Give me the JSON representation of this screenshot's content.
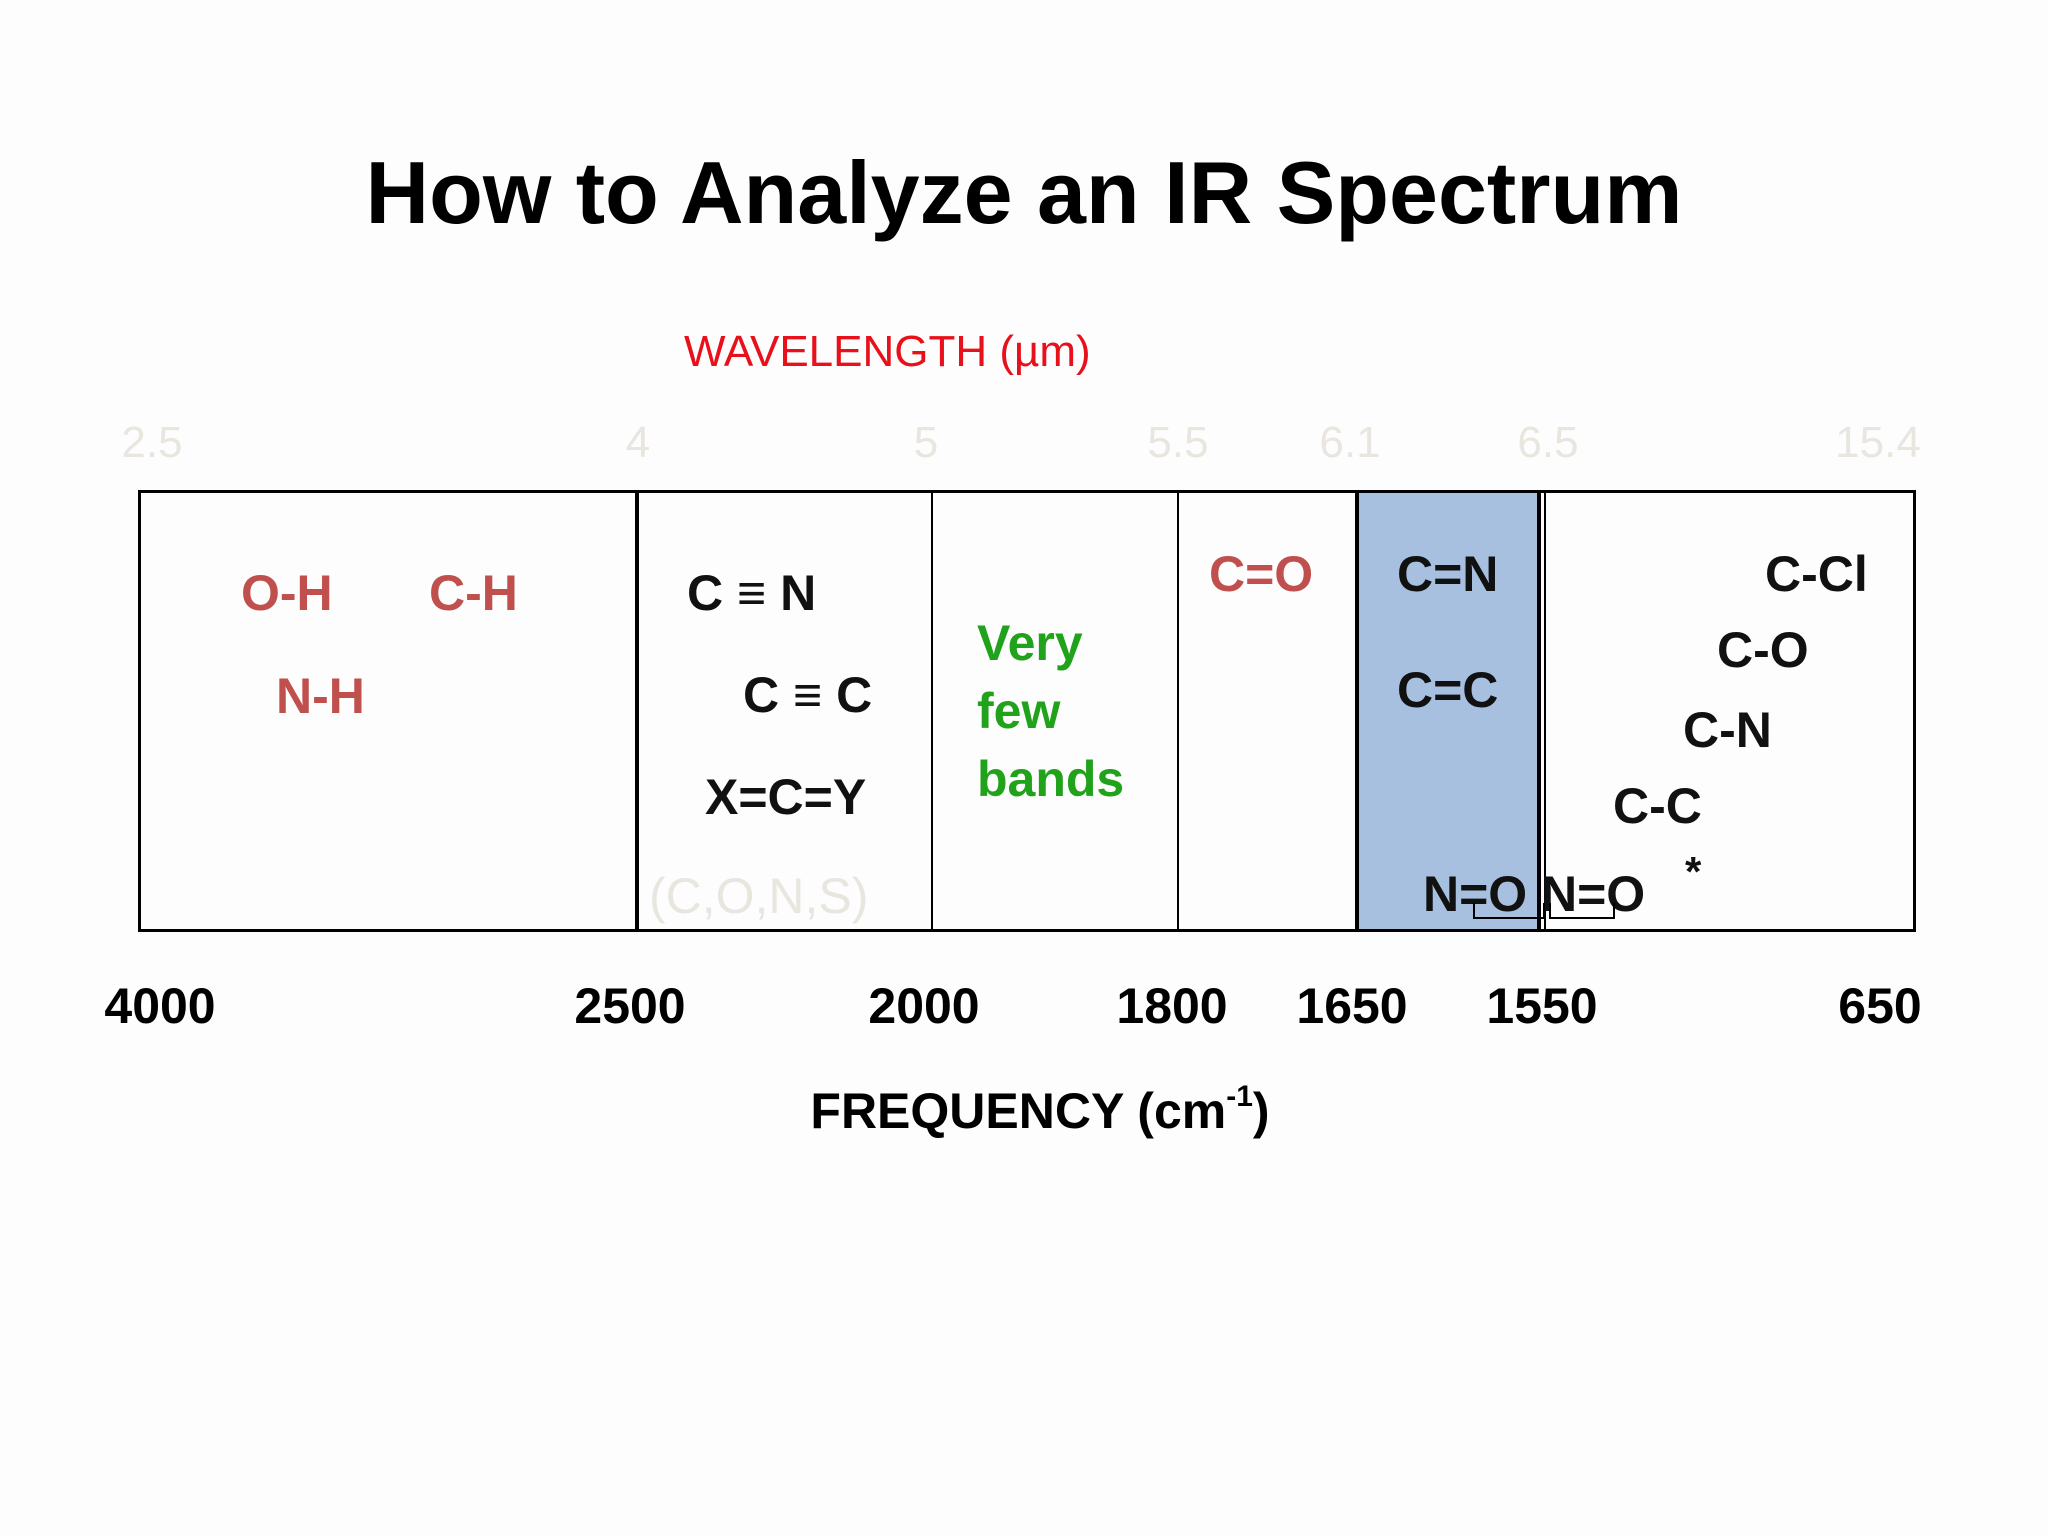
{
  "title": "How to Analyze an IR Spectrum",
  "wavelength_axis": {
    "label": "WAVELENGTH (µm)",
    "ticks": [
      "2.5",
      "4",
      "5",
      "5.5",
      "6.1",
      "6.5",
      "15.4"
    ]
  },
  "frequency_axis": {
    "label": "FREQUENCY (cm",
    "label_sup": "-1",
    "label_close": ")",
    "ticks": [
      "4000",
      "2500",
      "2000",
      "1800",
      "1650",
      "1550",
      "650"
    ]
  },
  "regions": {
    "r1": {
      "oh": "O-H",
      "ch": "C-H",
      "nh": "N-H"
    },
    "r2": {
      "cn_triple": "C ≡ N",
      "cc_triple": "C ≡ C",
      "xcy": "X=C=Y",
      "cons": "(C,O,N,S)"
    },
    "r3": {
      "line1": "Very",
      "line2": "few",
      "line3": "bands"
    },
    "r4": {
      "co_double": "C=O"
    },
    "r5": {
      "cn_double": "C=N",
      "cc_double": "C=C",
      "no_1": "N=O",
      "no_2": "N=O"
    },
    "r6": {
      "ccl": "C-Cl",
      "co": "C-O",
      "cn": "C-N",
      "cc": "C-C",
      "asterisk": "*"
    }
  },
  "colors": {
    "highlight_band": "#a7c0df",
    "single_bond_to_H": "#c0504d",
    "few_bands": "#21a21b",
    "wavelength_label": "#e8101a"
  }
}
